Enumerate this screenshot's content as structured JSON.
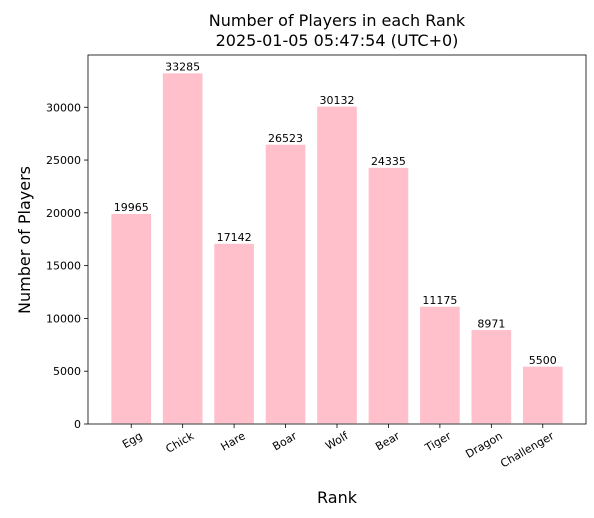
{
  "chart_data": {
    "type": "bar",
    "title": "Number of Players in each Rank",
    "subtitle": "2025-01-05 05:47:54 (UTC+0)",
    "x_label": "Rank",
    "y_label": "Number of Players",
    "categories": [
      "Egg",
      "Chick",
      "Hare",
      "Boar",
      "Wolf",
      "Bear",
      "Tiger",
      "Dragon",
      "Challenger"
    ],
    "values": [
      19965,
      33285,
      17142,
      26523,
      30132,
      24335,
      11175,
      8971,
      5500
    ],
    "color": "#ffc0cb",
    "ylim": [
      0,
      34950
    ],
    "yticks": [
      0,
      5000,
      10000,
      15000,
      20000,
      25000,
      30000
    ],
    "grid": false
  }
}
